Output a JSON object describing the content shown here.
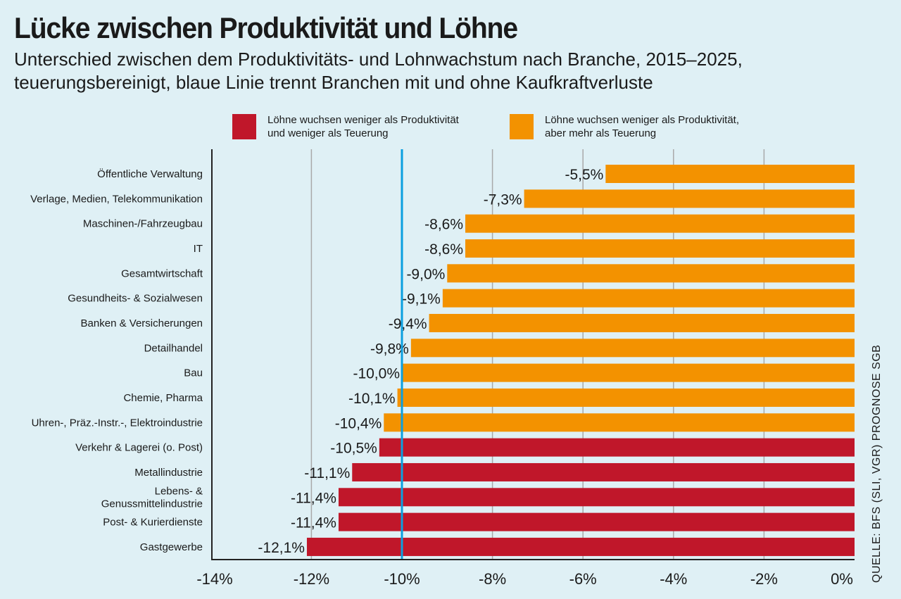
{
  "title": "Lücke zwischen Produktivität und Löhne",
  "subtitle": "Unterschied zwischen dem Produktivitäts- und Lohnwachstum nach Branche, 2015–2025, teuerungsbereinigt, blaue Linie trennt Branchen mit und ohne Kaufkraftverluste",
  "source": "QUELLE: BFS (SLI, VGR) PROGNOSE SGB",
  "colors": {
    "background": "#dff0f5",
    "red": "#c0172a",
    "orange": "#f39200",
    "reference_line": "#0a9fe0",
    "grid": "#a9a9a9"
  },
  "chart_data": {
    "type": "bar",
    "orientation": "horizontal",
    "xlim": [
      -14,
      0
    ],
    "x_ticks": [
      "-14%",
      "-12%",
      "-10%",
      "-8%",
      "-6%",
      "-4%",
      "-2%",
      "0%"
    ],
    "x_tick_values": [
      -14,
      -12,
      -10,
      -8,
      -6,
      -4,
      -2,
      0
    ],
    "reference_line": -10,
    "grid": true,
    "legend_placement": "top",
    "legend": [
      {
        "key": "red",
        "lines": [
          "Löhne wuchsen weniger als Produktivität",
          "und weniger als Teuerung"
        ]
      },
      {
        "key": "orange",
        "lines": [
          "Löhne wuchsen weniger als Produktivität,",
          "aber mehr als Teuerung"
        ]
      }
    ],
    "categories": [
      [
        "Öffentliche Verwaltung"
      ],
      [
        "Verlage, Medien, Telekommunikation"
      ],
      [
        "Maschinen-/Fahrzeugbau"
      ],
      [
        "IT"
      ],
      [
        "Gesamtwirtschaft"
      ],
      [
        "Gesundheits- & Sozialwesen"
      ],
      [
        "Banken & Versicherungen"
      ],
      [
        "Detailhandel"
      ],
      [
        "Bau"
      ],
      [
        "Chemie, Pharma"
      ],
      [
        "Uhren-, Präz.-Instr.-, Elektroindustrie"
      ],
      [
        "Verkehr & Lagerei (o. Post)"
      ],
      [
        "Metallindustrie"
      ],
      [
        "Lebens- &",
        "Genussmittelindustrie"
      ],
      [
        "Post- & Kurierdienste"
      ],
      [
        "Gastgewerbe"
      ]
    ],
    "values": [
      -5.5,
      -7.3,
      -8.6,
      -8.6,
      -9.0,
      -9.1,
      -9.4,
      -9.8,
      -10.0,
      -10.1,
      -10.4,
      -10.5,
      -11.1,
      -11.4,
      -11.4,
      -12.1
    ],
    "value_labels": [
      "-5,5%",
      "-7,3%",
      "-8,6%",
      "-8,6%",
      "-9,0%",
      "-9,1%",
      "-9,4%",
      "-9,8%",
      "-10,0%",
      "-10,1%",
      "-10,4%",
      "-10,5%",
      "-11,1%",
      "-11,4%",
      "-11,4%",
      "-12,1%"
    ],
    "groups": [
      "orange",
      "orange",
      "orange",
      "orange",
      "orange",
      "orange",
      "orange",
      "orange",
      "orange",
      "orange",
      "orange",
      "red",
      "red",
      "red",
      "red",
      "red"
    ]
  }
}
